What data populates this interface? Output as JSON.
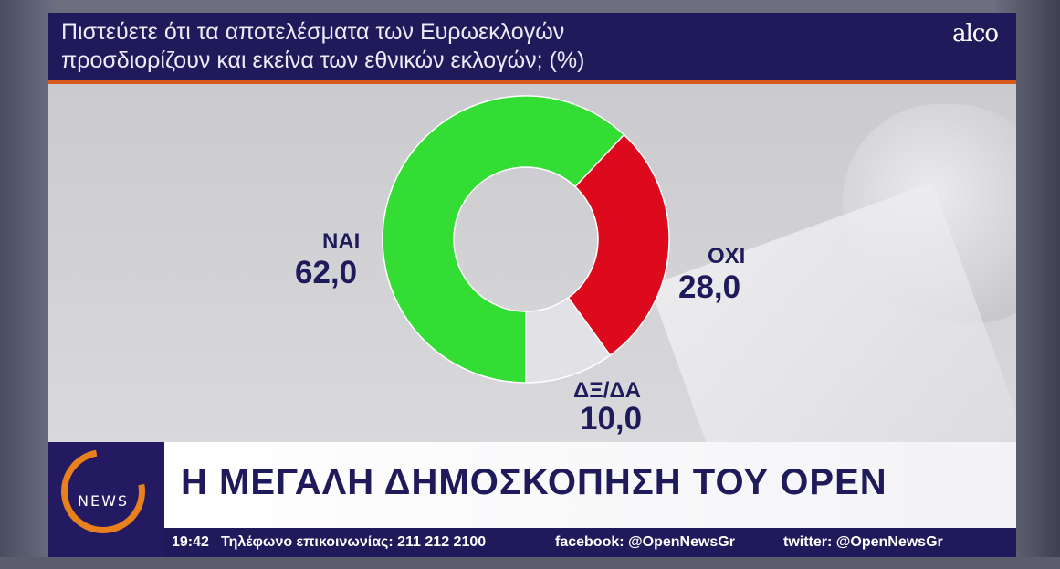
{
  "header": {
    "question_line1": "Πιστεύετε ότι τα αποτελέσματα των Ευρωεκλογών",
    "question_line2": "προσδιορίζουν και εκείνα των εθνικών εκλογών; (%)",
    "brand": "alco"
  },
  "chart_data": {
    "type": "pie",
    "title": "Πιστεύετε ότι τα αποτελέσματα των Ευρωεκλογών προσδιορίζουν και εκείνα των εθνικών εκλογών; (%)",
    "categories": [
      "ΝΑΙ",
      "ΟΧΙ",
      "ΔΞ/ΔΑ"
    ],
    "values": [
      62.0,
      28.0,
      10.0
    ],
    "value_labels": [
      "62,0",
      "28,0",
      "10,0"
    ],
    "colors": [
      "#33dd33",
      "#dd0a1e",
      "#e2e2e6"
    ],
    "donut": true
  },
  "banner": {
    "logo_text": "NEWS",
    "headline": "Η ΜΕΓΑΛΗ ΔΗΜΟΣΚΟΠΗΣΗ ΤΟΥ OPEN",
    "time": "19:42",
    "phone": "Τηλέφωνο επικοινωνίας: 211 212 2100",
    "facebook": "facebook: @OpenNewsGr",
    "twitter": "twitter: @OpenNewsGr",
    "colors": {
      "navy": "#1f1a5a",
      "orange": "#e8801e"
    }
  }
}
